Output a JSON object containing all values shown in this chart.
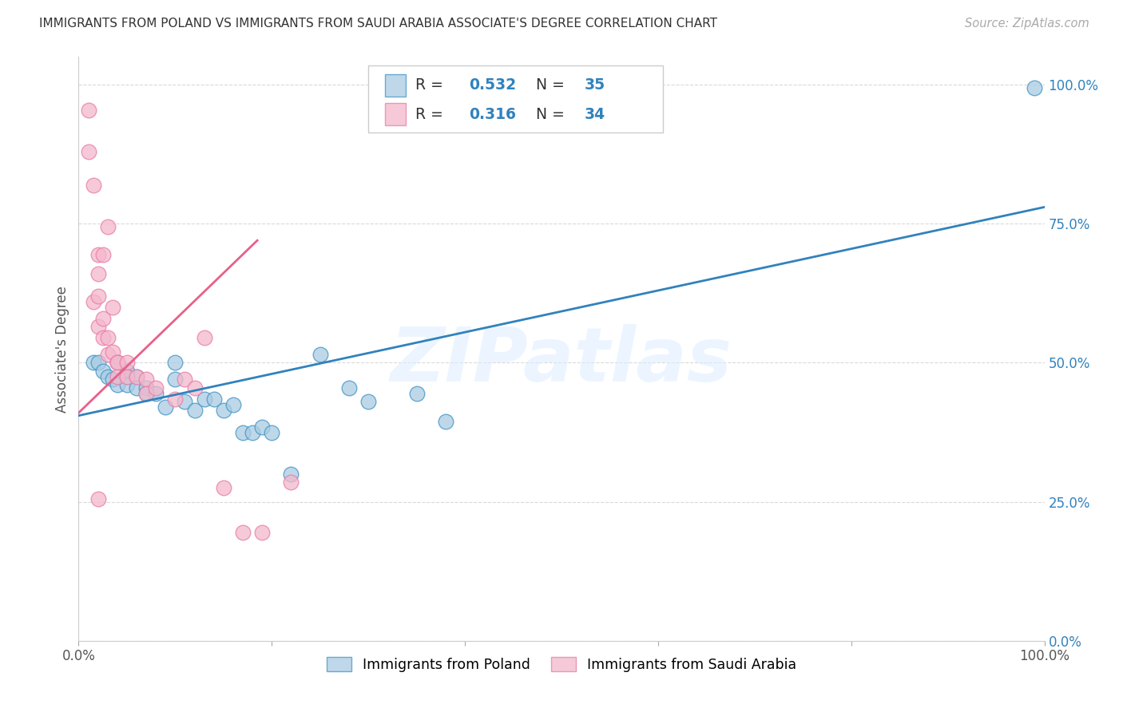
{
  "title": "IMMIGRANTS FROM POLAND VS IMMIGRANTS FROM SAUDI ARABIA ASSOCIATE'S DEGREE CORRELATION CHART",
  "source": "Source: ZipAtlas.com",
  "ylabel": "Associate's Degree",
  "legend_blue_label": "Immigrants from Poland",
  "legend_pink_label": "Immigrants from Saudi Arabia",
  "legend_R_blue": "0.532",
  "legend_N_blue": "35",
  "legend_R_pink": "0.316",
  "legend_N_pink": "34",
  "watermark": "ZIPatlas",
  "blue_color": "#a8cce4",
  "pink_color": "#f4b8cb",
  "blue_edge_color": "#4393c3",
  "pink_edge_color": "#e87da8",
  "blue_line_color": "#3182bd",
  "pink_line_color": "#e8608a",
  "right_label_color": "#3182bd",
  "xlim": [
    0.0,
    1.0
  ],
  "ylim": [
    0.0,
    1.05
  ],
  "right_ytick_values": [
    0.0,
    0.25,
    0.5,
    0.75,
    1.0
  ],
  "right_ytick_labels": [
    "0.0%",
    "25.0%",
    "50.0%",
    "75.0%",
    "100.0%"
  ],
  "xtick_positions": [
    0.0,
    0.2,
    0.4,
    0.6,
    0.8,
    1.0
  ],
  "xtick_labels": [
    "0.0%",
    "",
    "",
    "",
    "",
    "100.0%"
  ],
  "blue_scatter_x": [
    0.015,
    0.02,
    0.025,
    0.03,
    0.035,
    0.04,
    0.04,
    0.05,
    0.05,
    0.05,
    0.06,
    0.06,
    0.07,
    0.07,
    0.08,
    0.09,
    0.1,
    0.1,
    0.11,
    0.12,
    0.13,
    0.14,
    0.15,
    0.16,
    0.17,
    0.18,
    0.19,
    0.2,
    0.22,
    0.25,
    0.28,
    0.3,
    0.35,
    0.38,
    0.99
  ],
  "blue_scatter_y": [
    0.5,
    0.5,
    0.485,
    0.475,
    0.47,
    0.5,
    0.46,
    0.485,
    0.475,
    0.46,
    0.475,
    0.455,
    0.455,
    0.445,
    0.445,
    0.42,
    0.5,
    0.47,
    0.43,
    0.415,
    0.435,
    0.435,
    0.415,
    0.425,
    0.375,
    0.375,
    0.385,
    0.375,
    0.3,
    0.515,
    0.455,
    0.43,
    0.445,
    0.395,
    0.995
  ],
  "pink_scatter_x": [
    0.01,
    0.01,
    0.015,
    0.015,
    0.02,
    0.02,
    0.02,
    0.02,
    0.025,
    0.025,
    0.03,
    0.03,
    0.035,
    0.04,
    0.04,
    0.04,
    0.05,
    0.05,
    0.06,
    0.07,
    0.07,
    0.08,
    0.1,
    0.11,
    0.12,
    0.15,
    0.17,
    0.19,
    0.22,
    0.025,
    0.035,
    0.03,
    0.13,
    0.02
  ],
  "pink_scatter_y": [
    0.955,
    0.88,
    0.82,
    0.61,
    0.695,
    0.66,
    0.62,
    0.565,
    0.58,
    0.545,
    0.545,
    0.515,
    0.52,
    0.5,
    0.5,
    0.475,
    0.5,
    0.475,
    0.475,
    0.47,
    0.445,
    0.455,
    0.435,
    0.47,
    0.455,
    0.275,
    0.195,
    0.195,
    0.285,
    0.695,
    0.6,
    0.745,
    0.545,
    0.255
  ],
  "blue_trend_x": [
    0.0,
    1.0
  ],
  "blue_trend_y": [
    0.405,
    0.78
  ],
  "pink_trend_x": [
    0.0,
    0.185
  ],
  "pink_trend_y": [
    0.41,
    0.72
  ],
  "background_color": "#ffffff",
  "grid_color": "#d9d9d9"
}
